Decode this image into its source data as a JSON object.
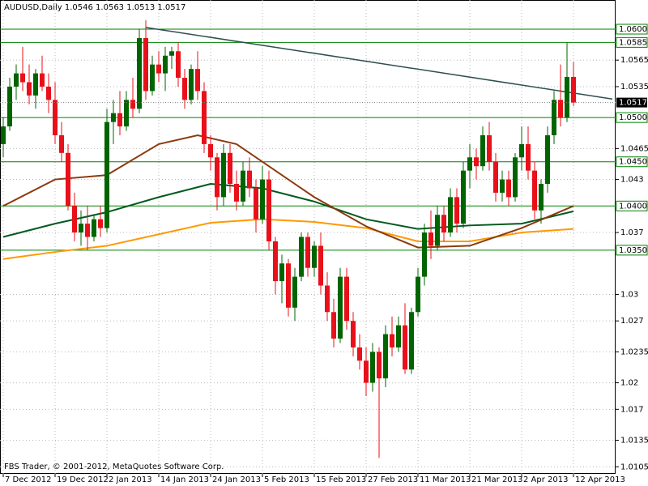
{
  "chart_data": {
    "type": "candlestick",
    "title": "AUDUSD,Daily  1.0546 1.0563 1.0513 1.0517",
    "footer": "FBS Trader, © 2001-2012, MetaQuotes Software Corp.",
    "categories": [
      "7 Dec 2012",
      null,
      null,
      null,
      null,
      null,
      null,
      null,
      "19 Dec 2012",
      null,
      null,
      null,
      null,
      null,
      null,
      null,
      "2 Jan 2013",
      null,
      null,
      null,
      null,
      null,
      null,
      null,
      "14 Jan 2013",
      null,
      null,
      null,
      null,
      null,
      null,
      null,
      "24 Jan 2013",
      null,
      null,
      null,
      null,
      null,
      null,
      null,
      "5 Feb 2013",
      null,
      null,
      null,
      null,
      null,
      null,
      null,
      "15 Feb 2013",
      null,
      null,
      null,
      null,
      null,
      null,
      null,
      "27 Feb 2013",
      null,
      null,
      null,
      null,
      null,
      null,
      null,
      "11 Mar 2013",
      null,
      null,
      null,
      null,
      null,
      null,
      null,
      "21 Mar 2013",
      null,
      null,
      null,
      null,
      null,
      null,
      null,
      "2 Apr 2013",
      null,
      null,
      null,
      null,
      null,
      null,
      null,
      "12 Apr 2013"
    ],
    "open": [
      1.047,
      1.049,
      1.0535,
      1.055,
      1.054,
      1.0525,
      1.055,
      1.0535,
      1.052,
      1.048,
      1.046,
      1.04,
      1.037,
      1.038,
      1.0365,
      1.0385,
      1.0375,
      1.0495,
      1.0505,
      1.049,
      1.052,
      1.051,
      1.059,
      1.053,
      1.056,
      1.055,
      1.057,
      1.0575,
      1.0545,
      1.052,
      1.0555,
      1.053,
      1.047,
      1.0455,
      1.041,
      1.046,
      1.0425,
      1.0405,
      1.044,
      1.042,
      1.0385,
      1.043,
      1.036,
      1.0315,
      1.0335,
      1.0285,
      1.032,
      1.0365,
      1.033,
      1.0355,
      1.031,
      1.028,
      1.025,
      1.032,
      1.027,
      1.024,
      1.0225,
      1.02,
      1.0235,
      1.0205,
      1.0255,
      1.024,
      1.0265,
      1.0215,
      1.028,
      1.032,
      1.037,
      1.0355,
      1.039,
      1.037,
      1.041,
      1.038,
      1.044,
      1.0455,
      1.0445,
      1.048,
      1.045,
      1.0415,
      1.043,
      1.041,
      1.0455,
      1.047,
      1.044,
      1.0395,
      1.0425,
      1.048,
      1.052,
      1.05,
      1.0546
    ],
    "high": [
      1.05,
      1.0545,
      1.056,
      1.058,
      1.056,
      1.0555,
      1.057,
      1.055,
      1.054,
      1.0495,
      1.047,
      1.0415,
      1.0395,
      1.04,
      1.039,
      1.04,
      1.051,
      1.052,
      1.053,
      1.053,
      1.0545,
      1.06,
      1.061,
      1.057,
      1.0575,
      1.058,
      1.058,
      1.0585,
      1.0555,
      1.056,
      1.0575,
      1.054,
      1.048,
      1.046,
      1.047,
      1.047,
      1.044,
      1.045,
      1.0455,
      1.043,
      1.0445,
      1.044,
      1.0365,
      1.0345,
      1.034,
      1.033,
      1.037,
      1.037,
      1.036,
      1.037,
      1.0325,
      1.0295,
      1.033,
      1.033,
      1.028,
      1.0255,
      1.024,
      1.0245,
      1.024,
      1.0265,
      1.0275,
      1.0275,
      1.029,
      1.0285,
      1.033,
      1.038,
      1.0395,
      1.04,
      1.04,
      1.042,
      1.042,
      1.045,
      1.047,
      1.0465,
      1.049,
      1.0495,
      1.046,
      1.044,
      1.044,
      1.046,
      1.049,
      1.049,
      1.045,
      1.043,
      1.049,
      1.053,
      1.056,
      1.0585,
      1.0563
    ],
    "low": [
      1.0455,
      1.0485,
      1.052,
      1.053,
      1.0515,
      1.051,
      1.053,
      1.0505,
      1.047,
      1.045,
      1.0395,
      1.036,
      1.0355,
      1.035,
      1.036,
      1.0365,
      1.037,
      1.047,
      1.048,
      1.0485,
      1.05,
      1.0505,
      1.052,
      1.0525,
      1.054,
      1.053,
      1.0555,
      1.0535,
      1.051,
      1.0515,
      1.052,
      1.046,
      1.044,
      1.0395,
      1.04,
      1.0415,
      1.0395,
      1.04,
      1.041,
      1.037,
      1.038,
      1.035,
      1.03,
      1.029,
      1.0275,
      1.027,
      1.0315,
      1.032,
      1.032,
      1.03,
      1.027,
      1.024,
      1.0245,
      1.026,
      1.023,
      1.0215,
      1.0185,
      1.019,
      1.0115,
      1.0195,
      1.023,
      1.0235,
      1.021,
      1.021,
      1.0275,
      1.031,
      1.034,
      1.035,
      1.036,
      1.0365,
      1.037,
      1.0375,
      1.042,
      1.043,
      1.044,
      1.044,
      1.0405,
      1.0405,
      1.04,
      1.0405,
      1.044,
      1.043,
      1.0385,
      1.038,
      1.0415,
      1.047,
      1.049,
      1.0495,
      1.0513
    ],
    "close": [
      1.049,
      1.0535,
      1.055,
      1.054,
      1.0525,
      1.055,
      1.0535,
      1.052,
      1.048,
      1.046,
      1.04,
      1.037,
      1.038,
      1.0365,
      1.0385,
      1.0375,
      1.0495,
      1.0505,
      1.049,
      1.052,
      1.051,
      1.059,
      1.053,
      1.056,
      1.055,
      1.057,
      1.0575,
      1.0545,
      1.052,
      1.0555,
      1.053,
      1.047,
      1.0455,
      1.041,
      1.046,
      1.0425,
      1.0405,
      1.044,
      1.042,
      1.0385,
      1.043,
      1.036,
      1.0315,
      1.0335,
      1.0285,
      1.032,
      1.0365,
      1.033,
      1.0355,
      1.031,
      1.028,
      1.025,
      1.032,
      1.027,
      1.024,
      1.0225,
      1.02,
      1.0235,
      1.0205,
      1.0255,
      1.024,
      1.0265,
      1.0215,
      1.028,
      1.032,
      1.037,
      1.0355,
      1.039,
      1.037,
      1.041,
      1.038,
      1.044,
      1.0455,
      1.0445,
      1.048,
      1.045,
      1.0415,
      1.043,
      1.041,
      1.0455,
      1.047,
      1.044,
      1.0395,
      1.0425,
      1.048,
      1.052,
      1.05,
      1.0546,
      1.0517
    ],
    "up_color": "#006400",
    "down_color": "#e8101a",
    "lines": [
      {
        "color": "#005a1e",
        "x": [
          0,
          8,
          16,
          24,
          32,
          40,
          48,
          56,
          64,
          72,
          80,
          88
        ],
        "values": [
          1.0365,
          1.038,
          1.0393,
          1.041,
          1.0425,
          1.042,
          1.0405,
          1.0385,
          1.0374,
          1.0378,
          1.038,
          1.0394
        ]
      },
      {
        "color": "#ff9900",
        "x": [
          0,
          8,
          16,
          24,
          32,
          40,
          48,
          56,
          64,
          72,
          80,
          88
        ],
        "values": [
          1.034,
          1.0348,
          1.0355,
          1.0368,
          1.0381,
          1.0385,
          1.0382,
          1.0375,
          1.036,
          1.036,
          1.037,
          1.0374
        ]
      },
      {
        "color": "#8b3a0f",
        "x": [
          0,
          8,
          16,
          24,
          30,
          36,
          42,
          48,
          56,
          64,
          72,
          80,
          88
        ],
        "values": [
          1.04,
          1.043,
          1.0435,
          1.047,
          1.048,
          1.047,
          1.044,
          1.041,
          1.0377,
          1.0353,
          1.0355,
          1.0375,
          1.04
        ]
      },
      {
        "color": "#2f4f4f",
        "x": [
          22,
          94
        ],
        "values": [
          1.0602,
          1.0521
        ]
      }
    ],
    "levels": [
      {
        "value": 1.06,
        "label": "1.0600"
      },
      1.0585,
      {
        "value": 1.05,
        "label": "1.0500"
      },
      {
        "value": 1.045,
        "label": "1.0450"
      },
      {
        "value": 1.04,
        "label": "1.0400"
      },
      {
        "value": 1.035,
        "label": "1.0350"
      }
    ],
    "level_color": "#008000",
    "price_line": 1.0517,
    "ylim": [
      1.0097,
      1.0633
    ],
    "xlim": [
      -0.5,
      94.5
    ],
    "yticks": [
      1.0105,
      1.0135,
      1.017,
      1.02,
      1.0235,
      1.027,
      1.03,
      1.037,
      1.043,
      1.0465,
      1.0535,
      1.0565
    ],
    "grid": true
  }
}
